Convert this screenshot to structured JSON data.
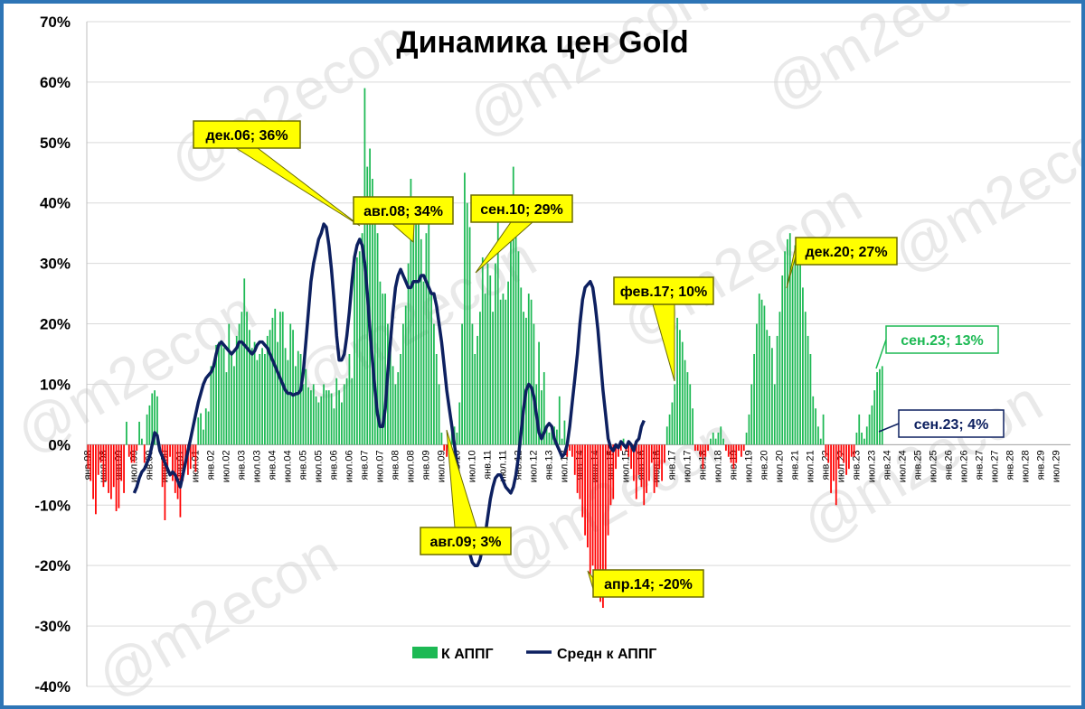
{
  "chart_data": {
    "type": "bar",
    "title": "Динамика цен Gold",
    "watermark": "@m2econ",
    "ylim": [
      -0.4,
      0.7
    ],
    "y_ticks": [
      "70%",
      "60%",
      "50%",
      "40%",
      "30%",
      "20%",
      "10%",
      "0%",
      "-10%",
      "-20%",
      "-30%",
      "-40%"
    ],
    "x_tick_labels": [
      "янв.98",
      "июл.98",
      "янв.99",
      "июл.99",
      "янв.00",
      "июл.00",
      "янв.01",
      "июл.01",
      "янв.02",
      "июл.02",
      "янв.03",
      "июл.03",
      "янв.04",
      "июл.04",
      "янв.05",
      "июл.05",
      "янв.06",
      "июл.06",
      "янв.07",
      "июл.07",
      "янв.08",
      "июл.08",
      "янв.09",
      "июл.09",
      "янв.10",
      "июл.10",
      "янв.11",
      "июл.11",
      "янв.12",
      "июл.12",
      "янв.13",
      "июл.13",
      "янв.14",
      "июл.14",
      "янв.15",
      "июл.15",
      "янв.16",
      "июл.16",
      "янв.17",
      "июл.17",
      "янв.18",
      "июл.18",
      "янв.19",
      "июл.19",
      "янв.20",
      "июл.20",
      "янв.21",
      "июл.21",
      "янв.22",
      "июл.22",
      "янв.23",
      "июл.23",
      "янв.24",
      "июл.24",
      "янв.25",
      "июл.25",
      "янв.26",
      "июл.26",
      "янв.27",
      "июл.27",
      "янв.28",
      "июл.28",
      "янв.29",
      "июл.29"
    ],
    "positive_color": "#1db954",
    "negative_color": "#ff0000",
    "avg_color": "#0d2060",
    "series": [
      {
        "name": "К АППГ",
        "kind": "bar",
        "values": [
          -0.04,
          -0.06,
          -0.09,
          -0.115,
          -0.05,
          -0.03,
          -0.07,
          -0.06,
          -0.08,
          -0.09,
          -0.07,
          -0.11,
          -0.105,
          -0.06,
          -0.08,
          0.038,
          -0.02,
          -0.03,
          -0.03,
          -0.01,
          0.038,
          0.01,
          -0.03,
          0.05,
          0.065,
          0.085,
          0.09,
          0.08,
          -0.01,
          -0.07,
          -0.125,
          -0.04,
          -0.02,
          -0.06,
          -0.08,
          -0.09,
          -0.12,
          -0.06,
          -0.03,
          -0.05,
          -0.04,
          -0.02,
          -0.045,
          0.045,
          0.052,
          0.025,
          0.06,
          0.055,
          0.13,
          0.135,
          0.165,
          0.17,
          0.165,
          0.16,
          0.12,
          0.2,
          0.15,
          0.13,
          0.18,
          0.2,
          0.22,
          0.275,
          0.22,
          0.19,
          0.16,
          0.17,
          0.14,
          0.15,
          0.16,
          0.15,
          0.18,
          0.19,
          0.21,
          0.225,
          0.17,
          0.22,
          0.22,
          0.16,
          0.14,
          0.2,
          0.19,
          0.13,
          0.155,
          0.15,
          0.1,
          0.125,
          0.095,
          0.09,
          0.1,
          0.08,
          0.07,
          0.08,
          0.1,
          0.09,
          0.09,
          0.085,
          0.06,
          0.11,
          0.09,
          0.07,
          0.1,
          0.11,
          0.15,
          0.11,
          0.3,
          0.31,
          0.32,
          0.35,
          0.59,
          0.46,
          0.49,
          0.44,
          0.4,
          0.35,
          0.27,
          0.25,
          0.25,
          0.2,
          0.16,
          0.13,
          0.1,
          0.12,
          0.15,
          0.2,
          0.23,
          0.3,
          0.44,
          0.38,
          0.38,
          0.4,
          0.34,
          0.27,
          0.35,
          0.38,
          0.25,
          0.2,
          0.15,
          0.1,
          0.02,
          -0.01,
          -0.02,
          -0.02,
          0.04,
          0.03,
          0.02,
          0.07,
          0.2,
          0.45,
          0.4,
          0.36,
          0.2,
          0.15,
          0.18,
          0.22,
          0.31,
          0.25,
          0.3,
          0.28,
          0.22,
          0.3,
          0.37,
          0.24,
          0.25,
          0.24,
          0.27,
          0.4,
          0.46,
          0.36,
          0.32,
          0.26,
          0.22,
          0.21,
          0.25,
          0.24,
          0.2,
          0.1,
          0.17,
          0.09,
          0.12,
          0.03,
          0.02,
          0.03,
          0.03,
          0.025,
          0.08,
          0.01,
          0.04,
          -0.02,
          -0.01,
          -0.02,
          -0.05,
          -0.08,
          -0.09,
          -0.12,
          -0.15,
          -0.17,
          -0.22,
          -0.2,
          -0.23,
          -0.25,
          -0.26,
          -0.27,
          -0.25,
          -0.15,
          -0.1,
          -0.09,
          -0.04,
          -0.02,
          -0.01,
          0.01,
          -0.01,
          -0.02,
          -0.04,
          -0.06,
          -0.09,
          -0.05,
          -0.07,
          -0.1,
          -0.08,
          -0.06,
          -0.03,
          -0.08,
          -0.07,
          -0.04,
          -0.06,
          -0.03,
          0.03,
          0.05,
          0.07,
          0.1,
          0.21,
          0.19,
          0.17,
          0.14,
          0.12,
          0.1,
          0.06,
          -0.01,
          -0.01,
          -0.02,
          -0.04,
          -0.02,
          -0.01,
          0.01,
          0.02,
          0.01,
          0.02,
          0.03,
          0.01,
          -0.01,
          -0.02,
          -0.03,
          -0.04,
          -0.03,
          -0.01,
          -0.02,
          -0.01,
          0.02,
          0.05,
          0.1,
          0.15,
          0.2,
          0.25,
          0.24,
          0.23,
          0.19,
          0.18,
          0.16,
          0.1,
          0.18,
          0.22,
          0.28,
          0.32,
          0.34,
          0.35,
          0.3,
          0.33,
          0.32,
          0.3,
          0.26,
          0.22,
          0.18,
          0.15,
          0.08,
          0.06,
          0.03,
          0.01,
          0.05,
          -0.02,
          -0.03,
          -0.08,
          -0.06,
          -0.1,
          -0.04,
          -0.02,
          -0.03,
          -0.05,
          -0.04,
          -0.02,
          -0.02,
          0.02,
          0.05,
          0.02,
          0.01,
          0.03,
          0.05,
          0.065,
          0.09,
          0.12,
          0.125,
          0.13
        ]
      },
      {
        "name": "Средн к АППГ",
        "kind": "line",
        "values": [
          null,
          null,
          null,
          null,
          null,
          null,
          null,
          null,
          null,
          null,
          null,
          null,
          null,
          null,
          null,
          null,
          null,
          null,
          -0.08,
          -0.07,
          -0.055,
          -0.045,
          -0.04,
          -0.03,
          -0.02,
          0.0,
          0.02,
          0.015,
          -0.01,
          -0.02,
          -0.03,
          -0.04,
          -0.05,
          -0.045,
          -0.05,
          -0.06,
          -0.07,
          -0.05,
          -0.03,
          -0.01,
          0.01,
          0.03,
          0.05,
          0.07,
          0.085,
          0.1,
          0.11,
          0.115,
          0.12,
          0.13,
          0.15,
          0.165,
          0.17,
          0.165,
          0.16,
          0.155,
          0.15,
          0.155,
          0.16,
          0.17,
          0.17,
          0.165,
          0.16,
          0.155,
          0.15,
          0.155,
          0.165,
          0.17,
          0.17,
          0.165,
          0.16,
          0.15,
          0.14,
          0.13,
          0.12,
          0.11,
          0.1,
          0.09,
          0.085,
          0.085,
          0.082,
          0.084,
          0.085,
          0.09,
          0.12,
          0.17,
          0.22,
          0.27,
          0.3,
          0.32,
          0.34,
          0.35,
          0.365,
          0.36,
          0.33,
          0.29,
          0.24,
          0.18,
          0.14,
          0.14,
          0.15,
          0.18,
          0.22,
          0.27,
          0.31,
          0.33,
          0.34,
          0.33,
          0.3,
          0.25,
          0.19,
          0.14,
          0.09,
          0.05,
          0.03,
          0.03,
          0.06,
          0.12,
          0.17,
          0.22,
          0.26,
          0.28,
          0.29,
          0.28,
          0.27,
          0.26,
          0.26,
          0.27,
          0.27,
          0.27,
          0.28,
          0.28,
          0.27,
          0.26,
          0.25,
          0.25,
          0.23,
          0.2,
          0.17,
          0.13,
          0.09,
          0.06,
          0.03,
          0.0,
          -0.03,
          -0.06,
          -0.09,
          -0.12,
          -0.15,
          -0.18,
          -0.195,
          -0.2,
          -0.2,
          -0.19,
          -0.17,
          -0.15,
          -0.12,
          -0.09,
          -0.07,
          -0.055,
          -0.05,
          -0.05,
          -0.06,
          -0.07,
          -0.075,
          -0.08,
          -0.07,
          -0.05,
          -0.02,
          0.02,
          0.06,
          0.09,
          0.1,
          0.095,
          0.08,
          0.05,
          0.02,
          0.01,
          0.02,
          0.03,
          0.035,
          0.03,
          0.01,
          0.0,
          -0.01,
          -0.02,
          -0.015,
          0.0,
          0.03,
          0.07,
          0.11,
          0.15,
          0.2,
          0.24,
          0.26,
          0.265,
          0.27,
          0.26,
          0.23,
          0.19,
          0.14,
          0.09,
          0.05,
          0.01,
          -0.005,
          -0.01,
          0.0,
          -0.005,
          0.005,
          0.0,
          -0.005,
          0.005,
          0.0,
          -0.01,
          0.005,
          0.01,
          0.03,
          0.04
        ]
      }
    ],
    "annotations": [
      {
        "text": "дек.06; 36%",
        "style": "yellow"
      },
      {
        "text": "авг.08; 34%",
        "style": "yellow"
      },
      {
        "text": "сен.10; 29%",
        "style": "yellow"
      },
      {
        "text": "авг.09; 3%",
        "style": "yellow"
      },
      {
        "text": "апр.14; -20%",
        "style": "yellow"
      },
      {
        "text": "фев.17; 10%",
        "style": "yellow"
      },
      {
        "text": "дек.20; 27%",
        "style": "yellow"
      },
      {
        "text": "сен.23; 13%",
        "style": "green"
      },
      {
        "text": "сен.23; 4%",
        "style": "navy"
      }
    ],
    "legend": {
      "position": "bottom-center",
      "items": [
        "К АППГ",
        "Средн к АППГ"
      ]
    },
    "grid": "horizontal"
  }
}
